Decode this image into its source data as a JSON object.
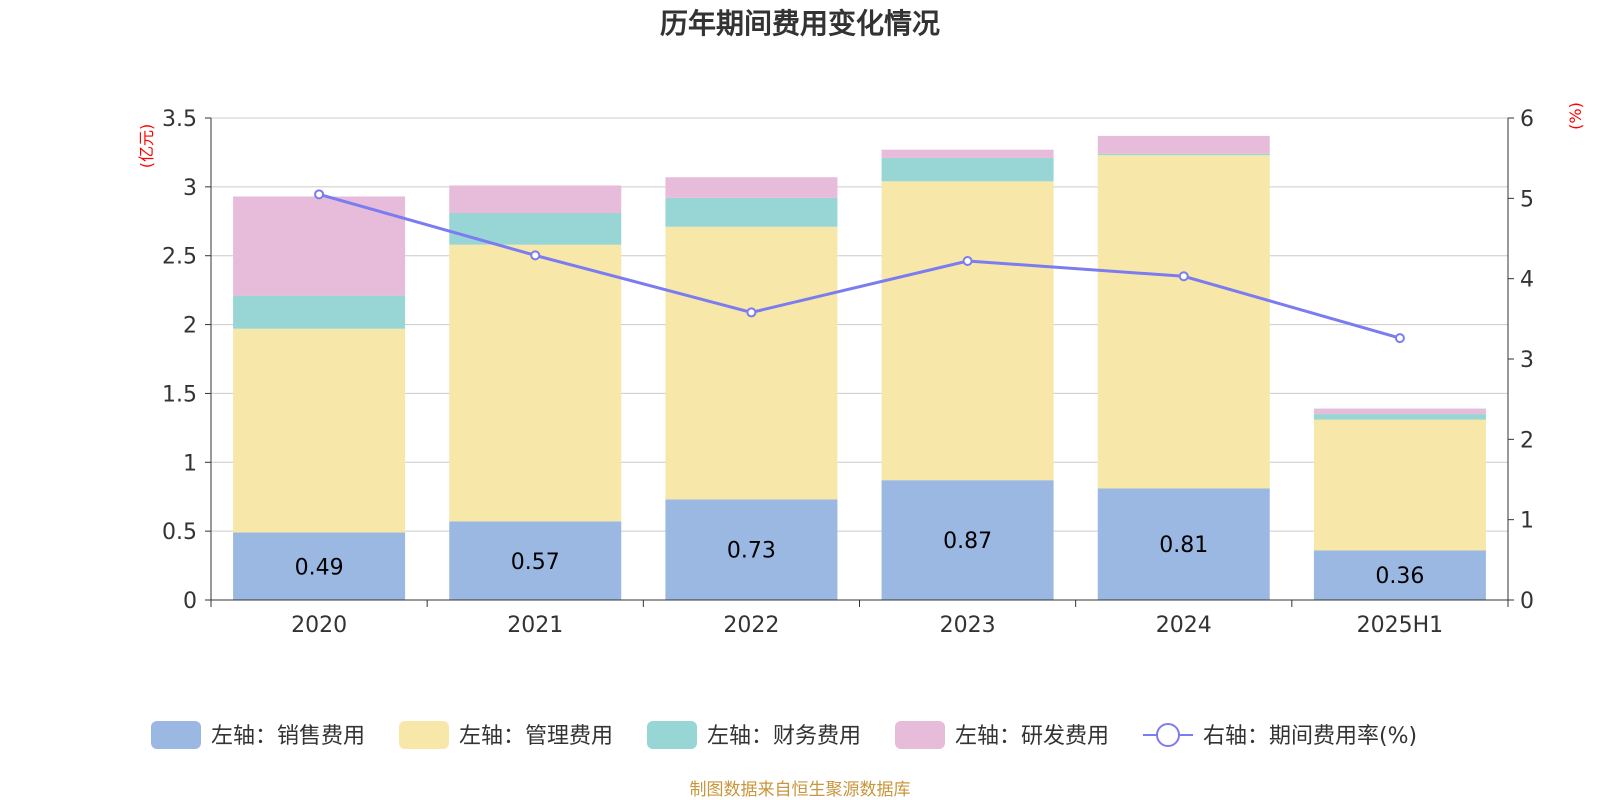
{
  "chart_data": {
    "type": "bar",
    "title": "历年期间费用变化情况",
    "categories": [
      "2020",
      "2021",
      "2022",
      "2023",
      "2024",
      "2025H1"
    ],
    "y_left": {
      "unit": "(亿元)",
      "ylim": [
        0,
        3.5
      ],
      "ticks": [
        "0",
        "0.5",
        "1",
        "1.5",
        "2",
        "2.5",
        "3",
        "3.5"
      ]
    },
    "y_right": {
      "unit": "(%)",
      "ylim": [
        0,
        6
      ],
      "ticks": [
        "0",
        "1",
        "2",
        "3",
        "4",
        "5",
        "6"
      ]
    },
    "series": [
      {
        "name": "左轴：销售费用",
        "type": "bar",
        "axis": "left",
        "color": "#9bb8e2",
        "values": [
          0.49,
          0.57,
          0.73,
          0.87,
          0.81,
          0.36
        ],
        "labels": [
          "0.49",
          "0.57",
          "0.73",
          "0.87",
          "0.81",
          "0.36"
        ]
      },
      {
        "name": "左轴：管理费用",
        "type": "bar",
        "axis": "left",
        "color": "#f7e7a9",
        "values": [
          1.48,
          2.01,
          1.98,
          2.17,
          2.42,
          0.95
        ]
      },
      {
        "name": "左轴：财务费用",
        "type": "bar",
        "axis": "left",
        "color": "#98d5d5",
        "values": [
          0.24,
          0.23,
          0.21,
          0.17,
          0.01,
          0.04
        ]
      },
      {
        "name": "左轴：研发费用",
        "type": "bar",
        "axis": "left",
        "color": "#e7bbda",
        "values": [
          0.72,
          0.2,
          0.15,
          0.06,
          0.13,
          0.04
        ]
      },
      {
        "name": "右轴：期间费用率(%)",
        "type": "line",
        "axis": "right",
        "color": "#7b7cf0",
        "values": [
          5.05,
          4.29,
          3.58,
          4.22,
          4.03,
          3.26
        ]
      }
    ],
    "grid": true,
    "legend_position": "bottom",
    "source": "制图数据来自恒生聚源数据库"
  }
}
